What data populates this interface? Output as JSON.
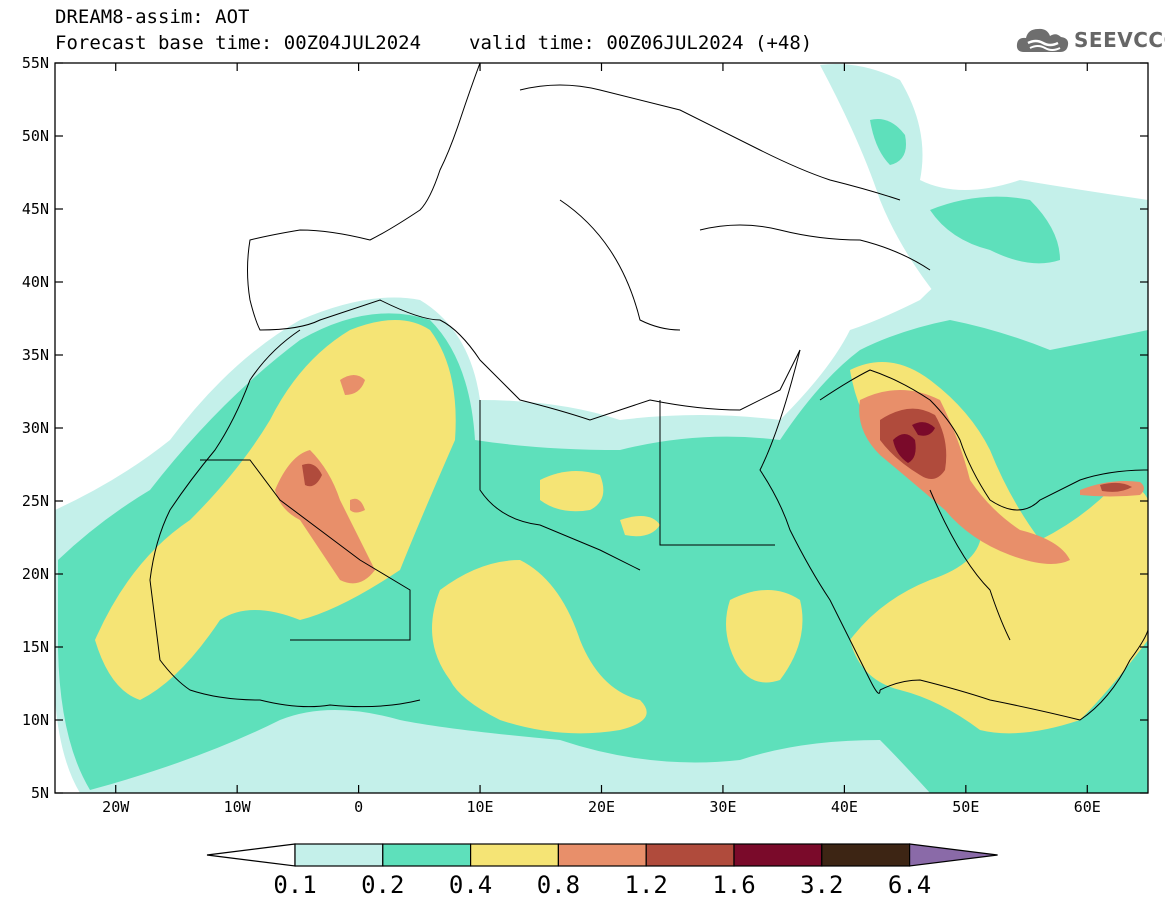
{
  "header": {
    "line1": "DREAM8-assim: AOT",
    "base_label": "Forecast base time: 00Z04JUL2024",
    "valid_label": "valid time: 00Z06JUL2024 (+48)"
  },
  "logo": {
    "text": "SEEVCCC",
    "icon": "cloud-icon"
  },
  "map": {
    "lon_range": [
      -25,
      65
    ],
    "lat_range": [
      5,
      55
    ],
    "lat_ticks": [
      {
        "v": 55,
        "t": "55N"
      },
      {
        "v": 50,
        "t": "50N"
      },
      {
        "v": 45,
        "t": "45N"
      },
      {
        "v": 40,
        "t": "40N"
      },
      {
        "v": 35,
        "t": "35N"
      },
      {
        "v": 30,
        "t": "30N"
      },
      {
        "v": 25,
        "t": "25N"
      },
      {
        "v": 20,
        "t": "20N"
      },
      {
        "v": 15,
        "t": "15N"
      },
      {
        "v": 10,
        "t": "10N"
      },
      {
        "v": 5,
        "t": "5N"
      }
    ],
    "lon_ticks": [
      {
        "v": -20,
        "t": "20W"
      },
      {
        "v": -10,
        "t": "10W"
      },
      {
        "v": 0,
        "t": "0"
      },
      {
        "v": 10,
        "t": "10E"
      },
      {
        "v": 20,
        "t": "20E"
      },
      {
        "v": 30,
        "t": "30E"
      },
      {
        "v": 40,
        "t": "40E"
      },
      {
        "v": 50,
        "t": "50E"
      },
      {
        "v": 60,
        "t": "60E"
      }
    ]
  },
  "colorbar": {
    "levels": [
      "0.1",
      "0.2",
      "0.4",
      "0.8",
      "1.2",
      "1.6",
      "3.2",
      "6.4"
    ],
    "colors": [
      "#ffffff",
      "#c4f0ea",
      "#5ee0bb",
      "#f5e475",
      "#e88f6a",
      "#b04b3c",
      "#7a0a2a",
      "#3d2514",
      "#8a6aa8"
    ]
  }
}
